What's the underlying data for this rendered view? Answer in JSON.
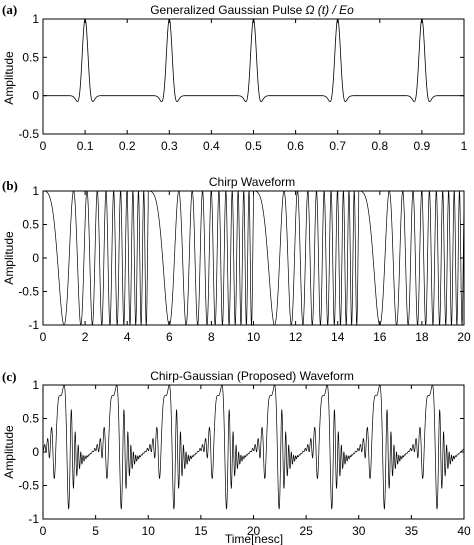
{
  "chart_data": [
    {
      "panel": "(a)",
      "type": "line",
      "title_plain": "Generalized Gaussian Pulse",
      "title_formula": "Ω (t) / Eo",
      "ylabel": "Amplitude",
      "xlabel": "",
      "xlim": [
        0,
        1
      ],
      "ylim": [
        -0.5,
        1
      ],
      "xticks": [
        0,
        0.1,
        0.2,
        0.3,
        0.4,
        0.5,
        0.6,
        0.7,
        0.8,
        0.9,
        1
      ],
      "xtick_labels": [
        "0",
        "0.1",
        "0.2",
        "0.3",
        "0.4",
        "0.5",
        "0.6",
        "0.7",
        "0.8",
        "0.9",
        "1"
      ],
      "yticks": [
        -0.5,
        0,
        0.5,
        1
      ],
      "ytick_labels": [
        "-0.5",
        "0",
        "0.5",
        "1"
      ],
      "pulse_centers": [
        0.1,
        0.3,
        0.5,
        0.7,
        0.9
      ],
      "pulse_peak": 1,
      "pulse_trough": -0.3
    },
    {
      "panel": "(b)",
      "type": "line",
      "title": "Chirp Waveform",
      "ylabel": "Amplitude",
      "xlabel": "",
      "xlim": [
        0,
        20
      ],
      "ylim": [
        -1,
        1
      ],
      "xticks": [
        0,
        2,
        4,
        6,
        8,
        10,
        12,
        14,
        16,
        18,
        20
      ],
      "xtick_labels": [
        "0",
        "2",
        "4",
        "6",
        "8",
        "10",
        "12",
        "14",
        "16",
        "18",
        "20"
      ],
      "yticks": [
        -1,
        -0.5,
        0,
        0.5,
        1
      ],
      "ytick_labels": [
        "-1",
        "-0.5",
        "0",
        "0.5",
        "1"
      ],
      "chirp_period": 5,
      "amplitude": 1
    },
    {
      "panel": "(c)",
      "type": "line",
      "title": "Chirp-Gaussian (Proposed) Waveform",
      "ylabel": "Amplitude",
      "xlabel": "Time[nesc]",
      "xlim": [
        0,
        40
      ],
      "ylim": [
        -1,
        1
      ],
      "xticks": [
        0,
        5,
        10,
        15,
        20,
        25,
        30,
        35,
        40
      ],
      "xtick_labels": [
        "0",
        "5",
        "10",
        "15",
        "20",
        "25",
        "30",
        "35",
        "40"
      ],
      "yticks": [
        -1,
        -0.5,
        0,
        0.5,
        1
      ],
      "ytick_labels": [
        "-1",
        "-0.5",
        "0",
        "0.5",
        "1"
      ],
      "burst_centers": [
        2,
        7,
        12,
        17,
        22,
        27,
        32,
        37
      ],
      "amplitude": 1
    }
  ]
}
